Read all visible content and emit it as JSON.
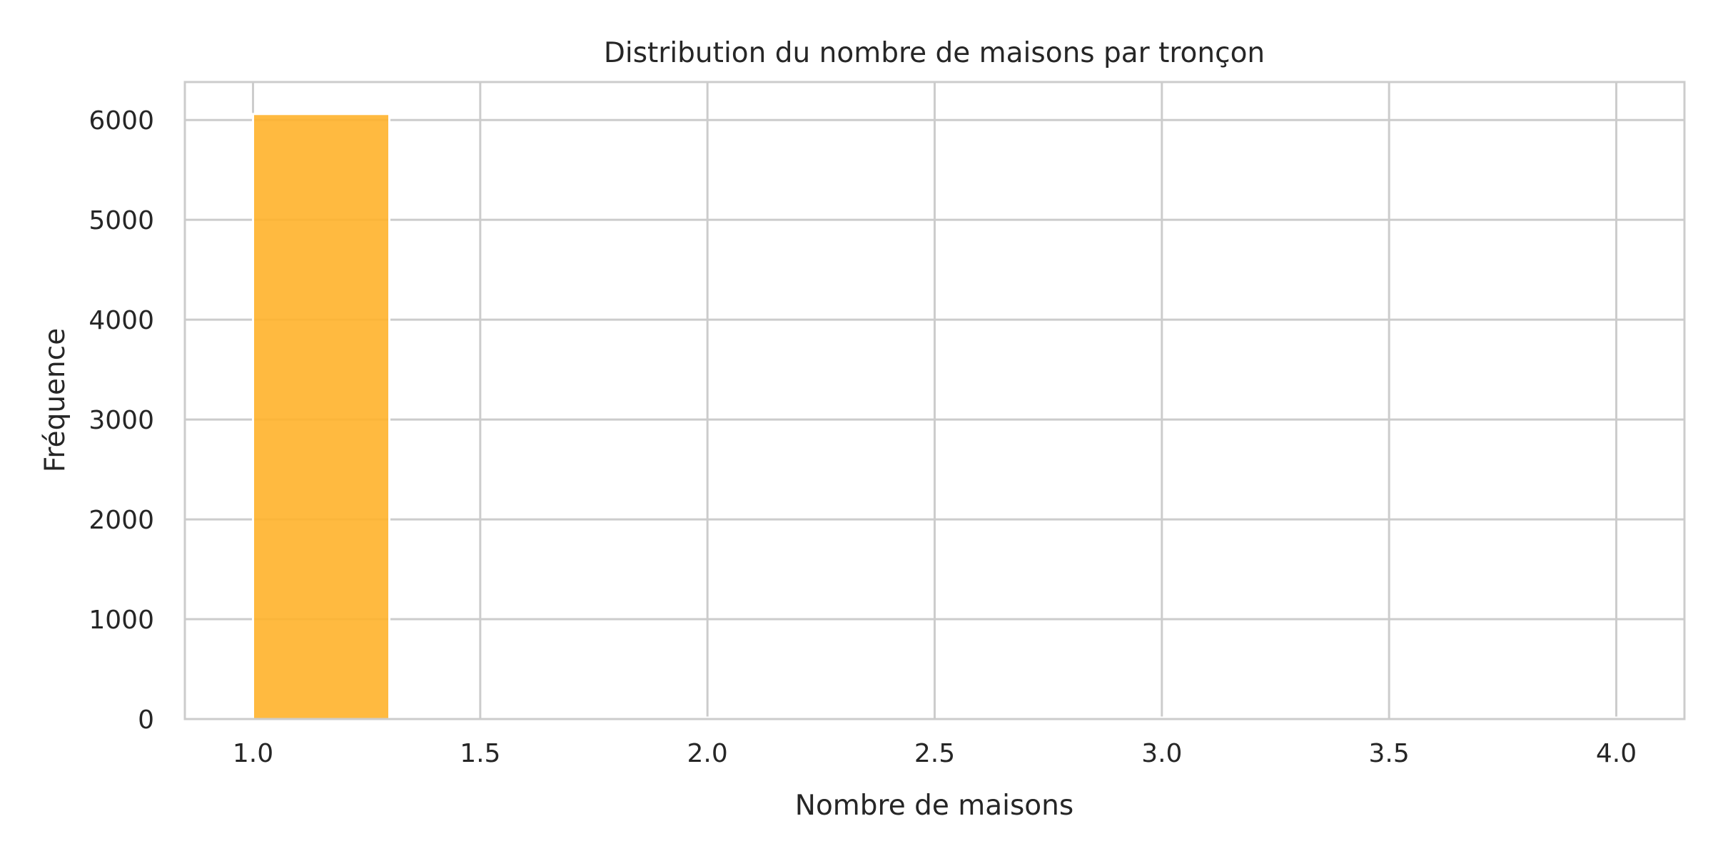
{
  "chart_data": {
    "type": "bar",
    "title": "Distribution du nombre de maisons par tronçon",
    "xlabel": "Nombre de maisons",
    "ylabel": "Fréquence",
    "xlim": [
      0.85,
      4.15
    ],
    "ylim": [
      0,
      6380
    ],
    "x_ticks": [
      1.0,
      1.5,
      2.0,
      2.5,
      3.0,
      3.5,
      4.0
    ],
    "x_tick_labels": [
      "1.0",
      "1.5",
      "2.0",
      "2.5",
      "3.0",
      "3.5",
      "4.0"
    ],
    "y_ticks": [
      0,
      1000,
      2000,
      3000,
      4000,
      5000,
      6000
    ],
    "y_tick_labels": [
      "0",
      "1000",
      "2000",
      "3000",
      "4000",
      "5000",
      "6000"
    ],
    "bins": [
      {
        "x0": 1.0,
        "x1": 1.3,
        "count": 6060
      },
      {
        "x0": 1.3,
        "x1": 1.6,
        "count": 0
      },
      {
        "x0": 1.6,
        "x1": 1.9,
        "count": 0
      },
      {
        "x0": 1.9,
        "x1": 2.2,
        "count": 12
      },
      {
        "x0": 2.2,
        "x1": 2.5,
        "count": 0
      },
      {
        "x0": 2.5,
        "x1": 2.8,
        "count": 0
      },
      {
        "x0": 2.8,
        "x1": 3.1,
        "count": 2
      },
      {
        "x0": 3.1,
        "x1": 3.4,
        "count": 0
      },
      {
        "x0": 3.4,
        "x1": 3.7,
        "count": 0
      },
      {
        "x0": 3.7,
        "x1": 4.0,
        "count": 1
      }
    ],
    "grid": true,
    "bar_color": "#FFB32B",
    "bar_edge_color": "#ffffff",
    "grid_color": "#cccccc",
    "frame_color": "#cccccc",
    "text_color": "#262626"
  }
}
